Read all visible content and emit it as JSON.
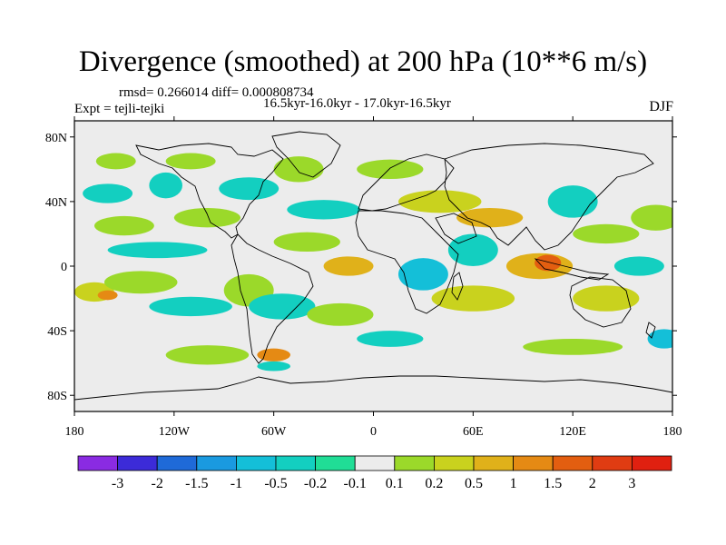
{
  "chart_data": {
    "type": "heatmap",
    "title": "Divergence (smoothed) at 200 hPa (10**6 m/s)",
    "stats": "rmsd= 0.266014 diff= 0.000808734",
    "periods": "16.5kyr-16.0kyr - 17.0kyr-16.5kyr",
    "experiment": "Expt = tejli-tejki",
    "season": "DJF",
    "x_ticks": [
      "180",
      "120W",
      "60W",
      "0",
      "60E",
      "120E",
      "180"
    ],
    "y_ticks": [
      "80N",
      "40N",
      "0",
      "40S",
      "80S"
    ],
    "x_range": [
      -180,
      180
    ],
    "y_range": [
      -90,
      90
    ],
    "colorbar_levels": [
      "-3",
      "-2",
      "-1.5",
      "-1",
      "-0.5",
      "-0.2",
      "-0.1",
      "0.1",
      "0.2",
      "0.5",
      "1",
      "1.5",
      "2",
      "3"
    ],
    "colorbar_colors": [
      "#8a2be2",
      "#3c2bd8",
      "#1f6ad8",
      "#1a9ae0",
      "#14bfd8",
      "#13cfc0",
      "#20dd96",
      "#ececec",
      "#9bd92a",
      "#c9d21e",
      "#e0b11a",
      "#e58a14",
      "#e35e10",
      "#e03c12",
      "#e02010"
    ],
    "blobs": [
      {
        "lon": -168,
        "lat": -16,
        "rx": 12,
        "ry": 6,
        "cls": 9
      },
      {
        "lon": -160,
        "lat": -18,
        "rx": 6,
        "ry": 3,
        "cls": 11
      },
      {
        "lon": -140,
        "lat": -10,
        "rx": 22,
        "ry": 7,
        "cls": 8
      },
      {
        "lon": -130,
        "lat": 10,
        "rx": 30,
        "ry": 5,
        "cls": 5
      },
      {
        "lon": -150,
        "lat": 25,
        "rx": 18,
        "ry": 6,
        "cls": 8
      },
      {
        "lon": -100,
        "lat": 30,
        "rx": 20,
        "ry": 6,
        "cls": 8
      },
      {
        "lon": -125,
        "lat": 50,
        "rx": 10,
        "ry": 8,
        "cls": 5
      },
      {
        "lon": -110,
        "lat": 65,
        "rx": 15,
        "ry": 5,
        "cls": 8
      },
      {
        "lon": -160,
        "lat": 45,
        "rx": 15,
        "ry": 6,
        "cls": 5
      },
      {
        "lon": -155,
        "lat": 65,
        "rx": 12,
        "ry": 5,
        "cls": 8
      },
      {
        "lon": -75,
        "lat": 48,
        "rx": 18,
        "ry": 7,
        "cls": 5
      },
      {
        "lon": -45,
        "lat": 60,
        "rx": 15,
        "ry": 8,
        "cls": 8
      },
      {
        "lon": -30,
        "lat": 35,
        "rx": 22,
        "ry": 6,
        "cls": 5
      },
      {
        "lon": -40,
        "lat": 15,
        "rx": 20,
        "ry": 6,
        "cls": 8
      },
      {
        "lon": -15,
        "lat": 0,
        "rx": 15,
        "ry": 6,
        "cls": 10
      },
      {
        "lon": -110,
        "lat": -25,
        "rx": 25,
        "ry": 6,
        "cls": 5
      },
      {
        "lon": -75,
        "lat": -15,
        "rx": 15,
        "ry": 10,
        "cls": 8
      },
      {
        "lon": -55,
        "lat": -25,
        "rx": 20,
        "ry": 8,
        "cls": 5
      },
      {
        "lon": -20,
        "lat": -30,
        "rx": 20,
        "ry": 7,
        "cls": 8
      },
      {
        "lon": -100,
        "lat": -55,
        "rx": 25,
        "ry": 6,
        "cls": 8
      },
      {
        "lon": -60,
        "lat": -55,
        "rx": 10,
        "ry": 4,
        "cls": 11
      },
      {
        "lon": -60,
        "lat": -62,
        "rx": 10,
        "ry": 3,
        "cls": 5
      },
      {
        "lon": 10,
        "lat": 60,
        "rx": 20,
        "ry": 6,
        "cls": 8
      },
      {
        "lon": 40,
        "lat": 40,
        "rx": 25,
        "ry": 7,
        "cls": 9
      },
      {
        "lon": 70,
        "lat": 30,
        "rx": 20,
        "ry": 6,
        "cls": 10
      },
      {
        "lon": 60,
        "lat": 10,
        "rx": 15,
        "ry": 10,
        "cls": 5
      },
      {
        "lon": 30,
        "lat": -5,
        "rx": 15,
        "ry": 10,
        "cls": 4
      },
      {
        "lon": 60,
        "lat": -20,
        "rx": 25,
        "ry": 8,
        "cls": 9
      },
      {
        "lon": 10,
        "lat": -45,
        "rx": 20,
        "ry": 5,
        "cls": 5
      },
      {
        "lon": 100,
        "lat": 0,
        "rx": 20,
        "ry": 8,
        "cls": 10
      },
      {
        "lon": 105,
        "lat": 2,
        "rx": 8,
        "ry": 5,
        "cls": 12
      },
      {
        "lon": 120,
        "lat": 40,
        "rx": 15,
        "ry": 10,
        "cls": 5
      },
      {
        "lon": 140,
        "lat": 20,
        "rx": 20,
        "ry": 6,
        "cls": 8
      },
      {
        "lon": 140,
        "lat": -20,
        "rx": 20,
        "ry": 8,
        "cls": 9
      },
      {
        "lon": 170,
        "lat": 30,
        "rx": 15,
        "ry": 8,
        "cls": 8
      },
      {
        "lon": 160,
        "lat": 0,
        "rx": 15,
        "ry": 6,
        "cls": 5
      },
      {
        "lon": 120,
        "lat": -50,
        "rx": 30,
        "ry": 5,
        "cls": 8
      },
      {
        "lon": 175,
        "lat": -45,
        "rx": 10,
        "ry": 6,
        "cls": 4
      }
    ]
  }
}
